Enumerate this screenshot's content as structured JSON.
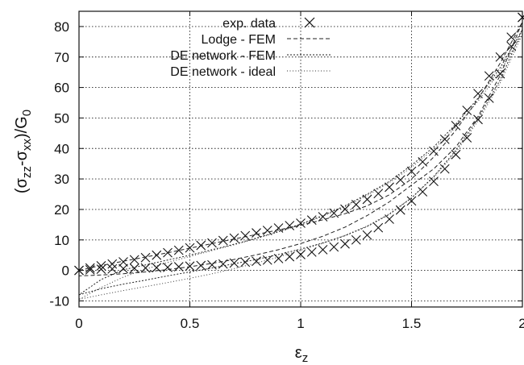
{
  "chart_data": {
    "type": "scatter",
    "xlabel": {
      "base": "ε",
      "sub": "z"
    },
    "ylabel": {
      "open": "(σ",
      "sub1": "zz",
      "minus": "-σ",
      "sub2": "xx",
      "close": ")/G",
      "sub3": "0"
    },
    "xlim": [
      0,
      2
    ],
    "ylim": [
      -12,
      85
    ],
    "x_ticks": [
      "0",
      "0.5",
      "1",
      "1.5",
      "2"
    ],
    "y_ticks": [
      "-10",
      "0",
      "10",
      "20",
      "30",
      "40",
      "50",
      "60",
      "70",
      "80"
    ],
    "grid": true,
    "legend_position": "top-left",
    "legend": [
      "exp. data",
      "Lodge - FEM",
      "DE network - FEM",
      "DE network - ideal"
    ],
    "series": [
      {
        "name": "exp. data",
        "style": "x-markers",
        "loading": {
          "x": [
            0,
            0.05,
            0.1,
            0.15,
            0.2,
            0.25,
            0.3,
            0.35,
            0.4,
            0.45,
            0.5,
            0.55,
            0.6,
            0.65,
            0.7,
            0.75,
            0.8,
            0.85,
            0.9,
            0.95,
            1.0,
            1.05,
            1.1,
            1.15,
            1.2,
            1.25,
            1.3,
            1.35,
            1.4,
            1.45,
            1.5,
            1.55,
            1.6,
            1.65,
            1.7,
            1.75,
            1.8,
            1.85,
            1.9,
            1.95,
            2.0
          ],
          "y": [
            0,
            0.8,
            1.5,
            2.1,
            2.8,
            3.5,
            4.2,
            5.0,
            5.8,
            6.6,
            7.4,
            8.2,
            9.0,
            9.8,
            10.6,
            11.4,
            12.3,
            13.1,
            13.9,
            14.7,
            15.5,
            16.5,
            17.6,
            18.8,
            20.1,
            21.6,
            23.3,
            25.2,
            27.3,
            29.7,
            32.5,
            35.6,
            39.1,
            43.0,
            47.5,
            52.5,
            58.0,
            63.8,
            70.0,
            76.5,
            83.0
          ]
        },
        "unloading": {
          "x": [
            2.0,
            1.95,
            1.9,
            1.85,
            1.8,
            1.75,
            1.7,
            1.65,
            1.6,
            1.55,
            1.5,
            1.45,
            1.4,
            1.35,
            1.3,
            1.25,
            1.2,
            1.15,
            1.1,
            1.05,
            1.0,
            0.95,
            0.9,
            0.85,
            0.8,
            0.75,
            0.7,
            0.65,
            0.6,
            0.55,
            0.5,
            0.45,
            0.4,
            0.35,
            0.3,
            0.25,
            0.2,
            0.15,
            0.1,
            0.05,
            0.0
          ],
          "y": [
            83.0,
            73.5,
            64.5,
            56.5,
            49.5,
            43.5,
            38.0,
            33.3,
            29.2,
            25.8,
            22.8,
            19.8,
            16.8,
            14.0,
            11.6,
            10.0,
            8.7,
            7.7,
            6.8,
            6.0,
            5.2,
            4.5,
            3.9,
            3.4,
            3.0,
            2.7,
            2.4,
            2.1,
            1.8,
            1.6,
            1.4,
            1.2,
            1.0,
            0.9,
            0.8,
            0.7,
            0.6,
            0.5,
            0.4,
            0.2,
            0.0
          ]
        }
      },
      {
        "name": "Lodge - FEM",
        "style": "dashed",
        "loading": {
          "x": [
            0,
            0.1,
            0.2,
            0.3,
            0.4,
            0.5,
            0.6,
            0.7,
            0.8,
            0.9,
            1.0,
            1.1,
            1.2,
            1.3,
            1.4,
            1.5,
            1.6,
            1.7,
            1.8,
            1.9,
            2.0
          ],
          "y": [
            0,
            1.6,
            3.0,
            4.4,
            5.8,
            7.3,
            8.8,
            10.3,
            11.8,
            13.3,
            14.8,
            16.6,
            18.6,
            21.2,
            24.8,
            30.0,
            37.2,
            46.0,
            56.2,
            68.0,
            81.5
          ]
        },
        "unloading": {
          "x": [
            2.0,
            1.9,
            1.8,
            1.7,
            1.6,
            1.5,
            1.4,
            1.3,
            1.2,
            1.1,
            1.0,
            0.9,
            0.8,
            0.7,
            0.6,
            0.5,
            0.4,
            0.3,
            0.2,
            0.1,
            0.0
          ],
          "y": [
            81.5,
            64.0,
            50.5,
            40.5,
            33.3,
            28.0,
            22.5,
            18.0,
            14.2,
            11.2,
            8.8,
            6.8,
            5.1,
            3.6,
            2.3,
            1.2,
            0.3,
            -0.5,
            -1.1,
            -1.5,
            -1.8
          ]
        }
      },
      {
        "name": "DE network - FEM",
        "style": "dense-dotted",
        "loading": {
          "x": [
            0,
            0.1,
            0.2,
            0.3,
            0.4,
            0.5,
            0.6,
            0.7,
            0.8,
            0.9,
            1.0,
            1.1,
            1.2,
            1.3,
            1.4,
            1.5,
            1.6,
            1.7,
            1.8,
            1.9,
            2.0
          ],
          "y": [
            -8.0,
            -6.0,
            -4.5,
            -3.2,
            -1.8,
            -0.5,
            0.8,
            2.2,
            3.6,
            5.2,
            7.0,
            9.0,
            11.4,
            14.4,
            18.4,
            23.8,
            30.8,
            39.4,
            49.8,
            62.5,
            79.0
          ]
        },
        "unloading": {
          "x": [
            2.0,
            1.9,
            1.8,
            1.7,
            1.6,
            1.5,
            1.4,
            1.3,
            1.2,
            1.1,
            1.0,
            0.9,
            0.8,
            0.7,
            0.6,
            0.5,
            0.4,
            0.3,
            0.2,
            0.1,
            0.0
          ],
          "y": [
            79.0,
            66.5,
            56.5,
            48.0,
            40.5,
            34.5,
            29.2,
            25.0,
            21.2,
            18.0,
            15.2,
            12.8,
            10.6,
            8.6,
            6.8,
            5.0,
            3.4,
            1.8,
            0.2,
            -3.0,
            -8.0
          ]
        }
      },
      {
        "name": "DE network - ideal",
        "style": "sparse-dotted",
        "loading": {
          "x": [
            0,
            0.1,
            0.2,
            0.3,
            0.4,
            0.5,
            0.6,
            0.7,
            0.8,
            0.9,
            1.0,
            1.1,
            1.2,
            1.3,
            1.4,
            1.5,
            1.6,
            1.7,
            1.8,
            1.9,
            2.0
          ],
          "y": [
            -9.5,
            -8.0,
            -6.6,
            -5.3,
            -4.0,
            -2.6,
            -1.1,
            0.6,
            2.4,
            4.4,
            6.6,
            8.9,
            11.5,
            14.6,
            18.6,
            23.8,
            30.5,
            38.8,
            49.0,
            61.5,
            77.5
          ]
        },
        "unloading": {
          "x": [
            2.0,
            1.9,
            1.8,
            1.7,
            1.6,
            1.5,
            1.4,
            1.3,
            1.2,
            1.1,
            1.0,
            0.9,
            0.8,
            0.7,
            0.6,
            0.5,
            0.4,
            0.3,
            0.2,
            0.1,
            0.0
          ],
          "y": [
            77.5,
            65.5,
            55.5,
            47.0,
            39.8,
            33.8,
            28.8,
            24.6,
            20.9,
            17.8,
            15.0,
            12.6,
            10.4,
            8.4,
            6.5,
            4.6,
            2.6,
            0.4,
            -2.2,
            -5.6,
            -9.5
          ]
        }
      }
    ]
  }
}
